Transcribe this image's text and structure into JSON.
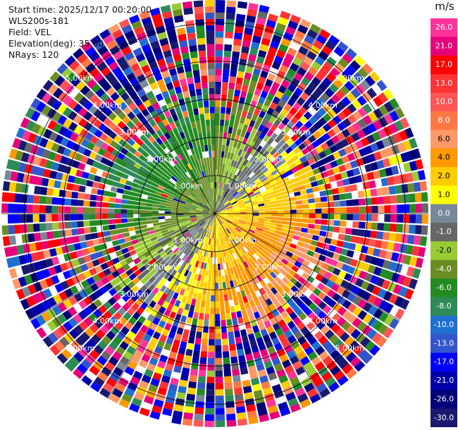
{
  "header": {
    "start_time": "Start time: 2025/12/17 00:20:00",
    "instrument": "WLS200s-181",
    "field": "Field: VEL",
    "elevation": "Elevation(deg): 35.00",
    "nrays": "NRays: 120"
  },
  "colorbar": {
    "unit": "m/s",
    "ticks": [
      "26.0",
      "21.0",
      "17.0",
      "13.0",
      "10.0",
      "8.0",
      "6.0",
      "4.0",
      "2.0",
      "1.0",
      "0.0",
      "-1.0",
      "-2.0",
      "-4.0",
      "-6.0",
      "-8.0",
      "-10.0",
      "-13.0",
      "-17.0",
      "-21.0",
      "-26.0",
      "-30.0"
    ],
    "colors": [
      "#ff3399",
      "#e6007a",
      "#ff0000",
      "#ff3333",
      "#ff5555",
      "#ff7744",
      "#ff9966",
      "#ff9900",
      "#ffcc00",
      "#ffff00",
      "#778899",
      "#666666",
      "#99cc33",
      "#6b8e23",
      "#228b22",
      "#2e8b57",
      "#1e6fd0",
      "#3355cc",
      "#0000ff",
      "#0000aa",
      "#000077",
      "#191970"
    ]
  },
  "chart_data": {
    "type": "heatmap",
    "projection": "polar (PPI)",
    "field": "VEL",
    "unit": "m/s",
    "nrays": 120,
    "elevation_deg": 35.0,
    "range_rings_km": [
      1.0,
      2.0,
      3.0,
      4.0,
      5.0
    ],
    "range_ring_labels": [
      "1.00km",
      "2.00km",
      "3.00km",
      "4.00km",
      "5.00km"
    ],
    "max_range_km": 5.6,
    "color_levels": [
      -30.0,
      -26.0,
      -21.0,
      -17.0,
      -13.0,
      -10.0,
      -8.0,
      -6.0,
      -4.0,
      -2.0,
      -1.0,
      0.0,
      1.0,
      2.0,
      4.0,
      6.0,
      8.0,
      10.0,
      13.0,
      17.0,
      21.0,
      26.0
    ],
    "pattern": "near-field returns: small negative velocities to west/northwest, small positive velocities to southeast; far-field gates are noisy across the full color range"
  }
}
